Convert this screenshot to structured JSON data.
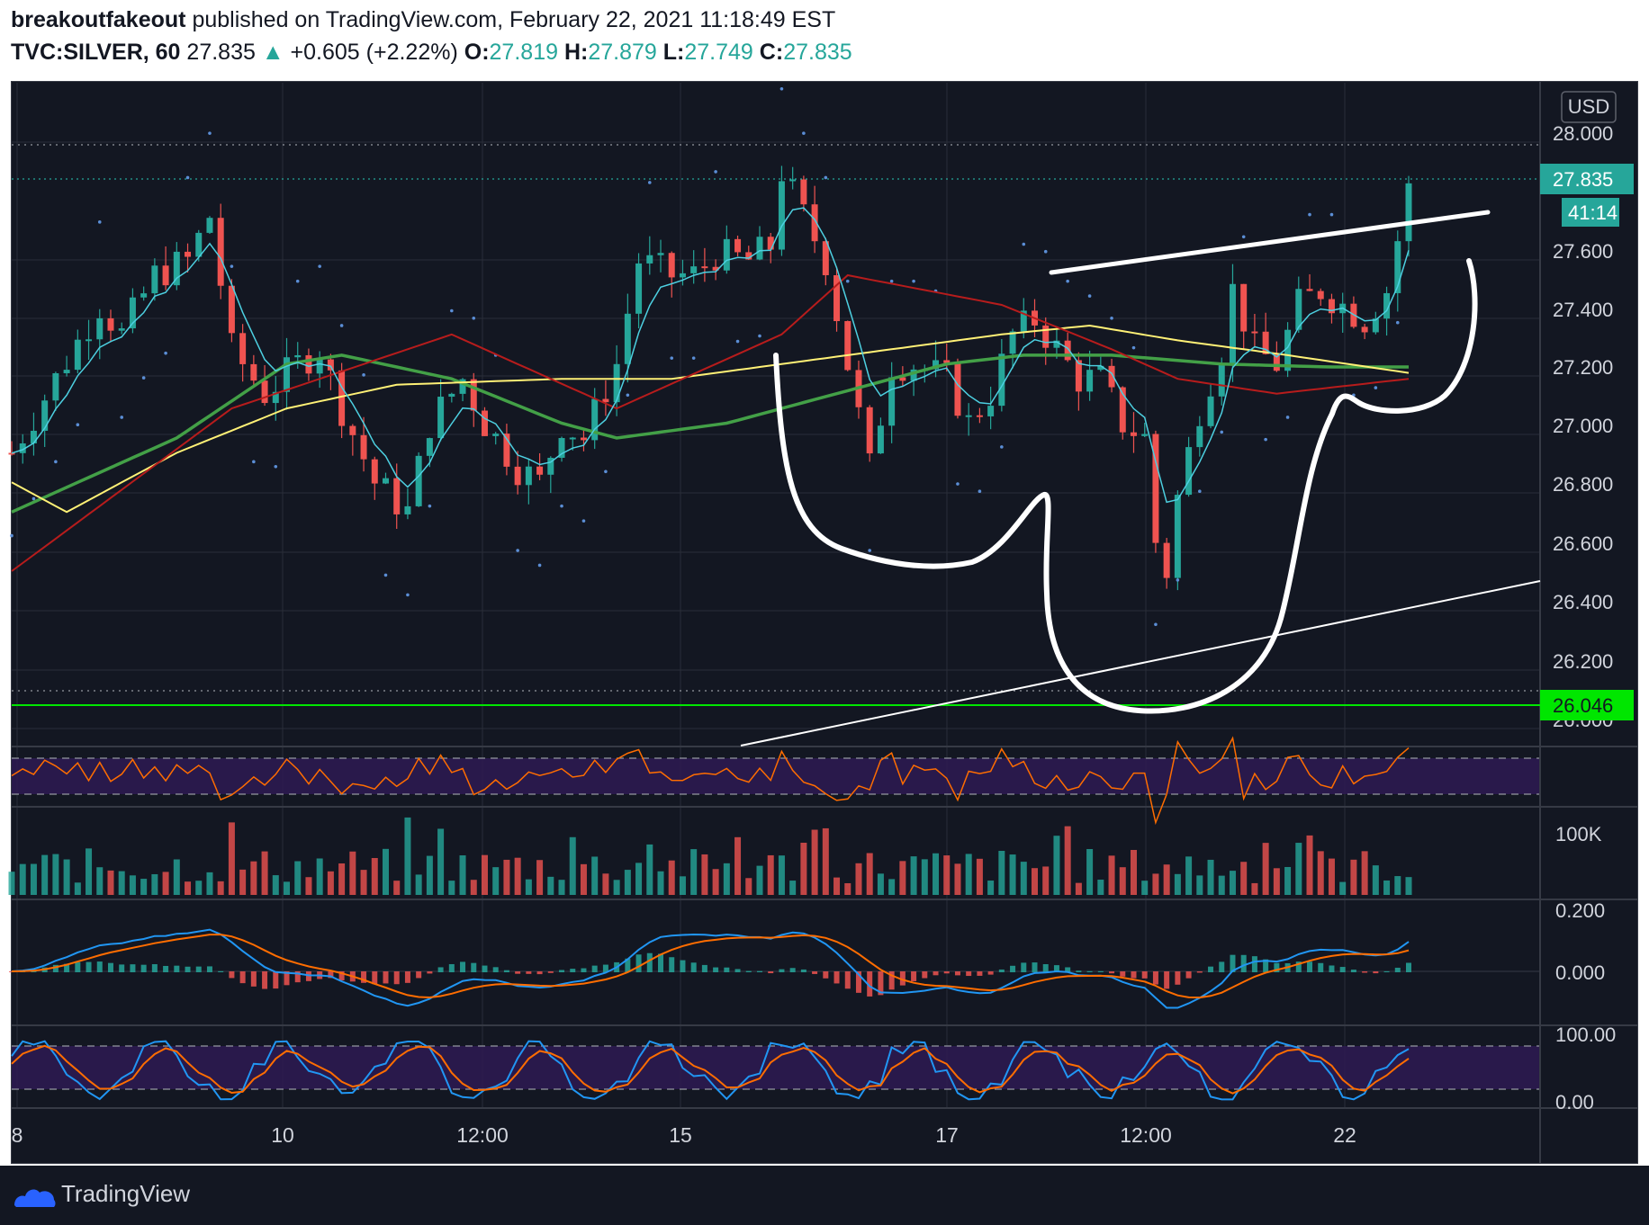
{
  "header": {
    "author": "breakoutfakeout",
    "published": "published on TradingView.com, February 22, 2021 11:18:49 EST",
    "symbol": "TVC:SILVER, 60",
    "last": "27.835",
    "change": "+0.605 (+2.22%)",
    "o_label": "O:",
    "o_value": "27.819",
    "h_label": "H:",
    "h_value": "27.879",
    "l_label": "L:",
    "l_value": "27.749",
    "c_label": "C:",
    "c_value": "27.835"
  },
  "price_scale": {
    "currency": "USD",
    "labels": [
      "28.000",
      "27.600",
      "27.400",
      "27.200",
      "27.000",
      "26.800",
      "26.600",
      "26.400",
      "26.200",
      "26.000"
    ],
    "current_price": "27.835",
    "countdown": "41:14",
    "support_price": "26.046"
  },
  "volume_scale": {
    "label": "100K"
  },
  "macd_scale": {
    "labels": [
      "0.200",
      "0.000"
    ]
  },
  "stoch_scale": {
    "labels": [
      "100.00",
      "0.00"
    ]
  },
  "time_axis": {
    "labels": [
      "8",
      "10",
      "12:00",
      "15",
      "17",
      "12:00",
      "22"
    ]
  },
  "footer": {
    "brand": "TradingView"
  },
  "colors": {
    "background": "#131722",
    "grid": "#2a2e39",
    "up": "#26a69a",
    "down": "#ef5350",
    "ema_fast": "#4dd0e1",
    "sma_red": "#b71c1c",
    "sma_yellow": "#fff176",
    "sma_green": "#43a047",
    "psar": "#5b8ed6",
    "support": "#00e600",
    "rsi_line": "#ff6d00",
    "band_fill": "#2e1a52"
  },
  "chart_data": {
    "type": "candlestick",
    "symbol": "TVC:SILVER",
    "interval": "60",
    "ylim": [
      25.95,
      28.1
    ],
    "yticks": [
      28.0,
      27.6,
      27.4,
      27.2,
      27.0,
      26.8,
      26.6,
      26.4,
      26.2,
      26.0
    ],
    "support_level": 26.046,
    "current_price": 27.835,
    "xlabels": [
      "8",
      "10",
      "12:00",
      "15",
      "17",
      "12:00",
      "22"
    ],
    "price_path": [
      [
        0,
        26.95
      ],
      [
        4,
        27.2
      ],
      [
        8,
        27.45
      ],
      [
        10,
        27.35
      ],
      [
        13,
        27.55
      ],
      [
        16,
        27.6
      ],
      [
        18,
        27.75
      ],
      [
        20,
        27.3
      ],
      [
        23,
        27.15
      ],
      [
        26,
        27.25
      ],
      [
        28,
        27.3
      ],
      [
        30,
        27.1
      ],
      [
        33,
        26.85
      ],
      [
        36,
        26.75
      ],
      [
        38,
        27.05
      ],
      [
        41,
        27.2
      ],
      [
        43,
        27.05
      ],
      [
        46,
        26.9
      ],
      [
        48,
        26.85
      ],
      [
        50,
        27.05
      ],
      [
        52,
        27.0
      ],
      [
        55,
        27.25
      ],
      [
        57,
        27.6
      ],
      [
        60,
        27.55
      ],
      [
        62,
        27.55
      ],
      [
        64,
        27.62
      ],
      [
        67,
        27.6
      ],
      [
        69,
        27.65
      ],
      [
        70,
        27.9
      ],
      [
        72,
        27.75
      ],
      [
        74,
        27.6
      ],
      [
        76,
        27.25
      ],
      [
        78,
        26.9
      ],
      [
        80,
        27.25
      ],
      [
        82,
        27.25
      ],
      [
        85,
        27.2
      ],
      [
        87,
        27.05
      ],
      [
        89,
        27.15
      ],
      [
        91,
        27.35
      ],
      [
        93,
        27.4
      ],
      [
        95,
        27.3
      ],
      [
        97,
        27.2
      ],
      [
        99,
        27.2
      ],
      [
        101,
        27.05
      ],
      [
        103,
        27.0
      ],
      [
        104,
        26.65
      ],
      [
        105,
        26.55
      ],
      [
        106,
        26.8
      ],
      [
        108,
        27.1
      ],
      [
        110,
        27.3
      ],
      [
        111,
        27.5
      ],
      [
        113,
        27.3
      ],
      [
        115,
        27.25
      ],
      [
        117,
        27.45
      ],
      [
        119,
        27.5
      ],
      [
        121,
        27.45
      ],
      [
        123,
        27.4
      ],
      [
        125,
        27.5
      ],
      [
        127,
        27.84
      ]
    ],
    "sma_red": [
      [
        0,
        26.55
      ],
      [
        20,
        27.1
      ],
      [
        40,
        27.35
      ],
      [
        55,
        27.1
      ],
      [
        70,
        27.35
      ],
      [
        76,
        27.55
      ],
      [
        90,
        27.45
      ],
      [
        100,
        27.3
      ],
      [
        106,
        27.2
      ],
      [
        115,
        27.15
      ],
      [
        127,
        27.2
      ]
    ],
    "sma_yellow": [
      [
        0,
        26.85
      ],
      [
        5,
        26.75
      ],
      [
        15,
        26.95
      ],
      [
        25,
        27.1
      ],
      [
        35,
        27.18
      ],
      [
        50,
        27.2
      ],
      [
        60,
        27.2
      ],
      [
        70,
        27.25
      ],
      [
        80,
        27.3
      ],
      [
        90,
        27.35
      ],
      [
        98,
        27.38
      ],
      [
        106,
        27.33
      ],
      [
        116,
        27.28
      ],
      [
        127,
        27.22
      ]
    ],
    "sma_green": [
      [
        0,
        26.75
      ],
      [
        15,
        27.0
      ],
      [
        25,
        27.25
      ],
      [
        30,
        27.28
      ],
      [
        40,
        27.2
      ],
      [
        50,
        27.05
      ],
      [
        55,
        27.0
      ],
      [
        65,
        27.05
      ],
      [
        75,
        27.15
      ],
      [
        85,
        27.25
      ],
      [
        92,
        27.28
      ],
      [
        100,
        27.28
      ],
      [
        110,
        27.25
      ],
      [
        120,
        27.24
      ],
      [
        127,
        27.24
      ]
    ],
    "annotations": [
      "rising trendline",
      "cup and handle drawing",
      "horizontal support 26.046"
    ],
    "indicators": [
      "RSI",
      "Volume",
      "MACD",
      "Stochastic RSI"
    ]
  }
}
